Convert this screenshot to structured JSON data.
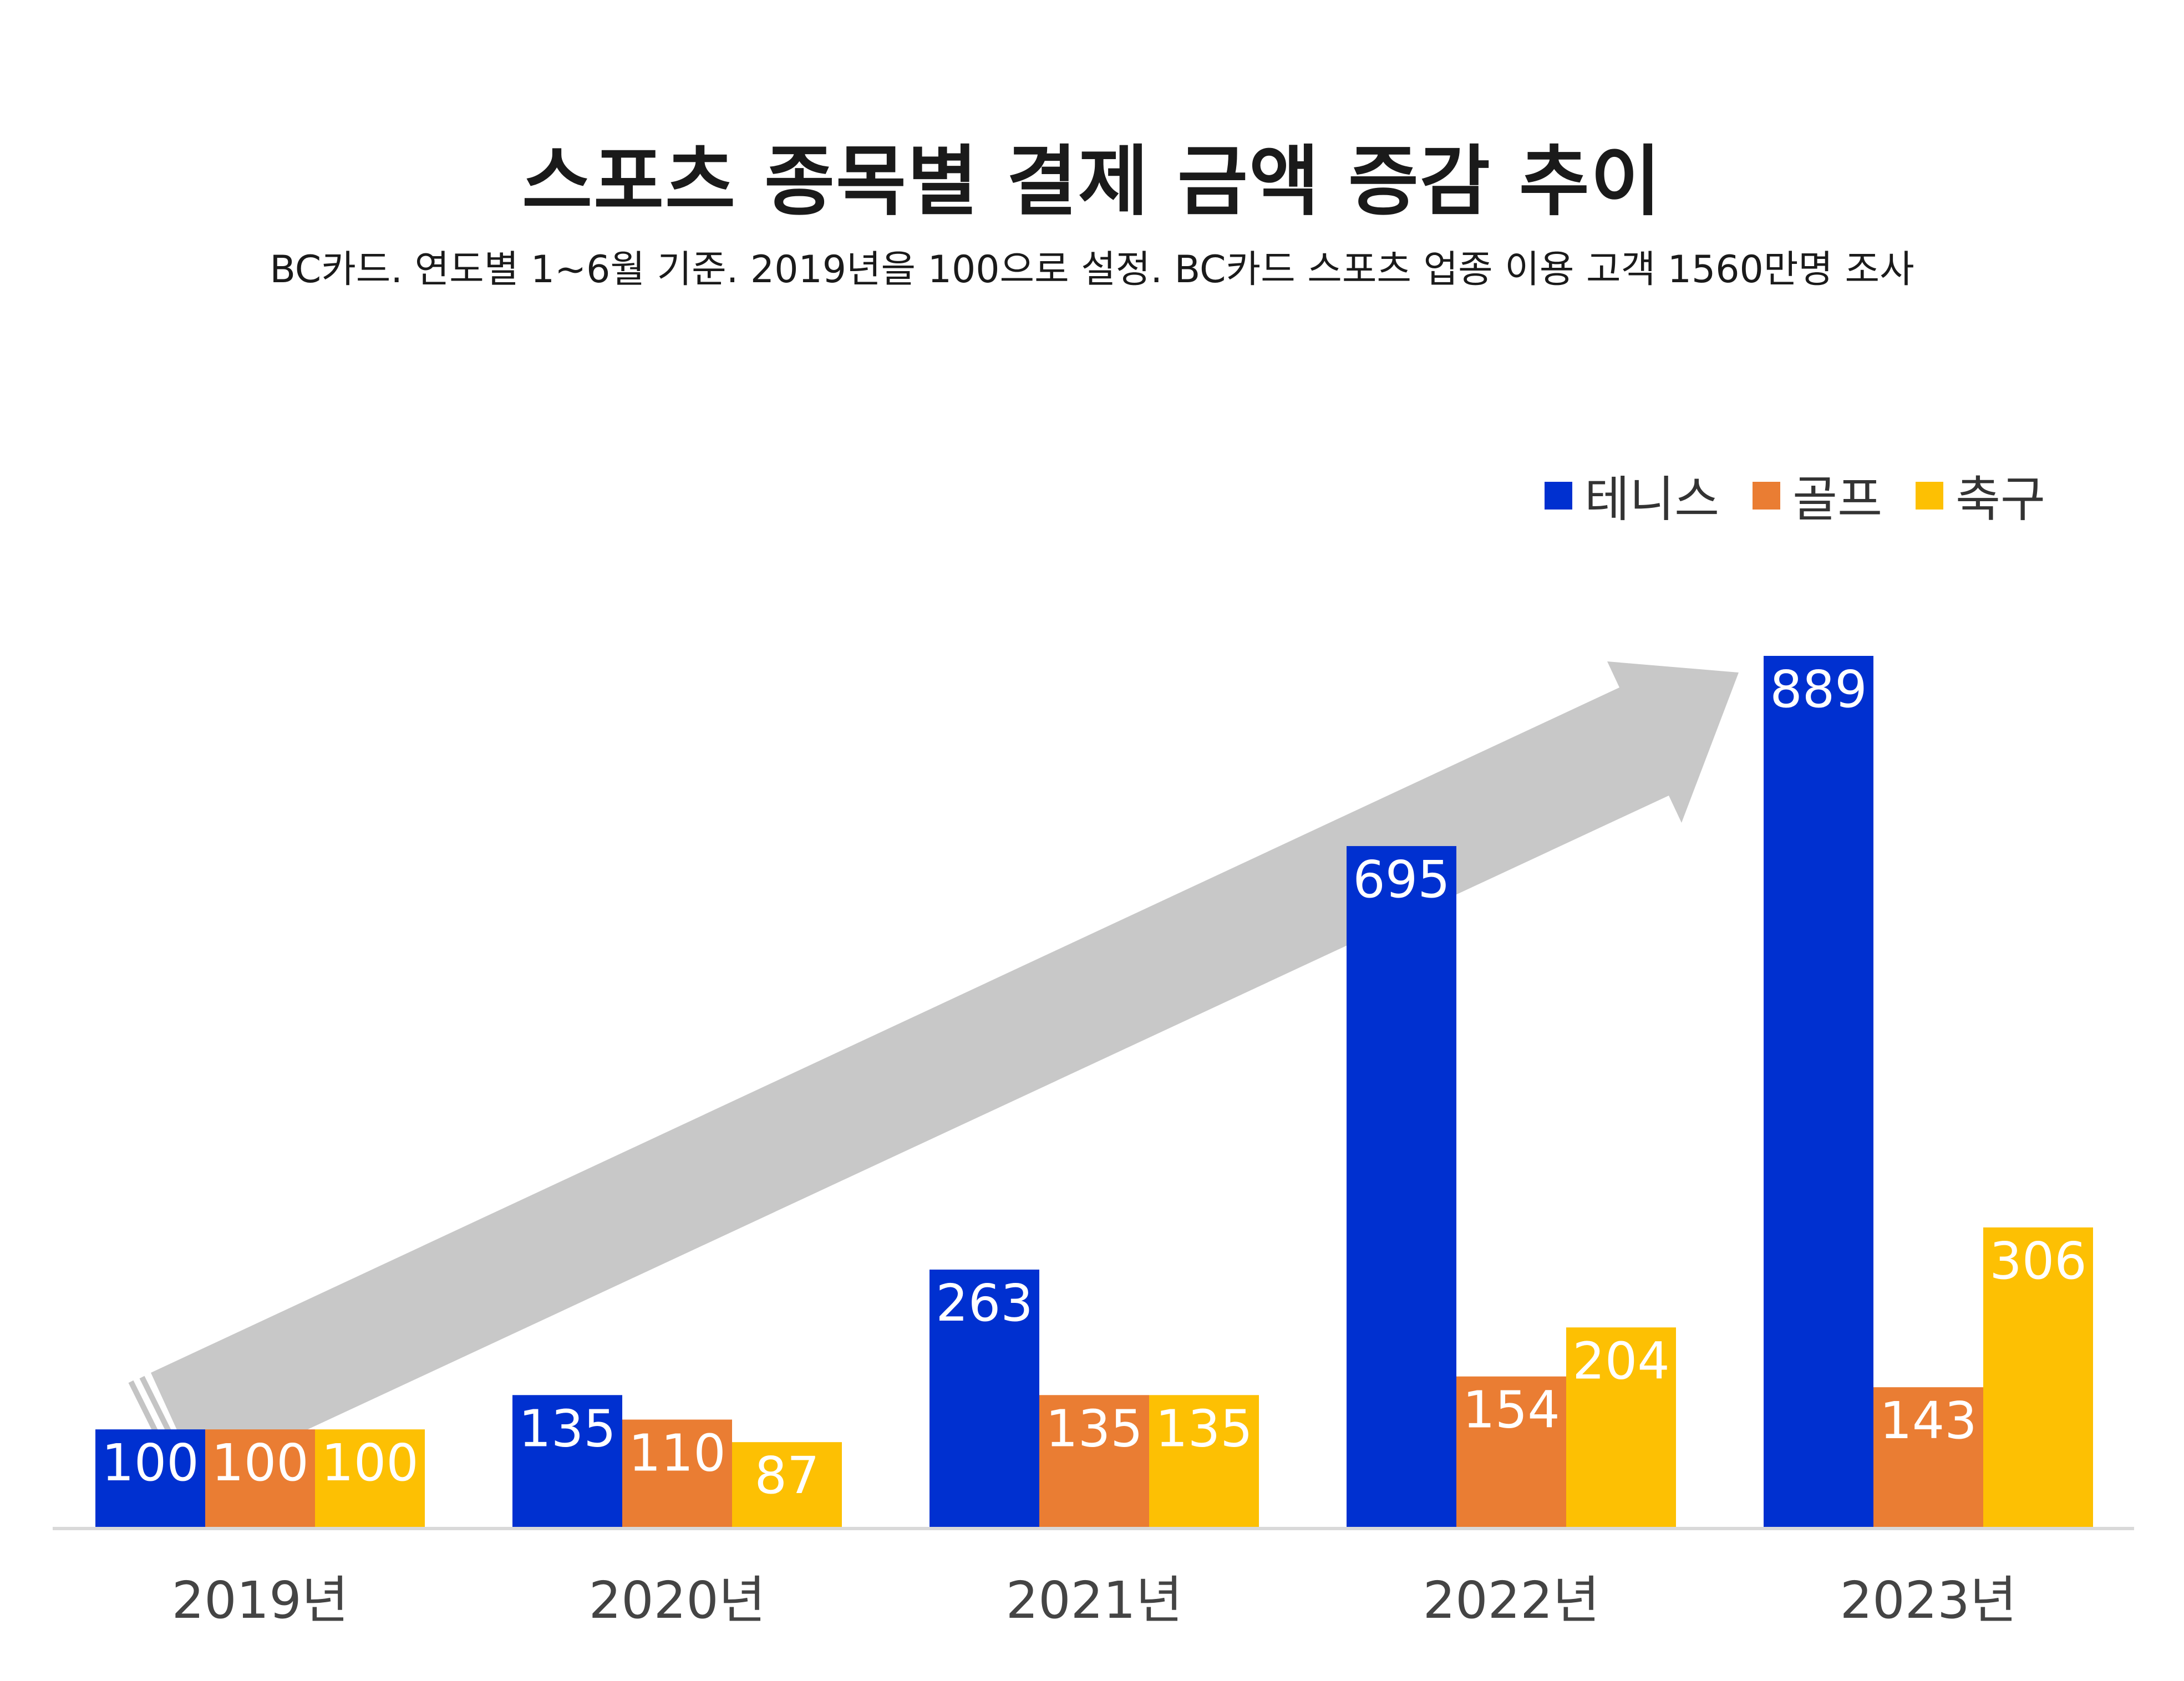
{
  "title": "스포츠 종목별 결제 금액 증감 추이",
  "subtitle": "BC카드. 연도별 1~6월 기준. 2019년을 100으로 설정. BC카드 스포츠 업종 이용 고객 1560만명 조사",
  "legend": [
    {
      "label": "테니스",
      "color": "#0030d0"
    },
    {
      "label": "골프",
      "color": "#ea7d33"
    },
    {
      "label": "축구",
      "color": "#fdc003"
    }
  ],
  "chart_data": {
    "type": "bar",
    "title": "스포츠 종목별 결제 금액 증감 추이",
    "subtitle": "BC카드. 연도별 1~6월 기준. 2019년을 100으로 설정. BC카드 스포츠 업종 이용 고객 1560만명 조사",
    "categories": [
      "2019년",
      "2020년",
      "2021년",
      "2022년",
      "2023년"
    ],
    "series": [
      {
        "name": "테니스",
        "color": "#0030d0",
        "values": [
          100,
          135,
          263,
          695,
          889
        ]
      },
      {
        "name": "골프",
        "color": "#ea7d33",
        "values": [
          100,
          110,
          135,
          154,
          143
        ]
      },
      {
        "name": "축구",
        "color": "#fdc003",
        "values": [
          100,
          87,
          135,
          204,
          306
        ]
      }
    ],
    "xlabel": "",
    "ylabel": "",
    "ylim": [
      0,
      889
    ],
    "grid": false,
    "legend_position": "top-right",
    "data_labels": true,
    "trend_arrow": true
  }
}
